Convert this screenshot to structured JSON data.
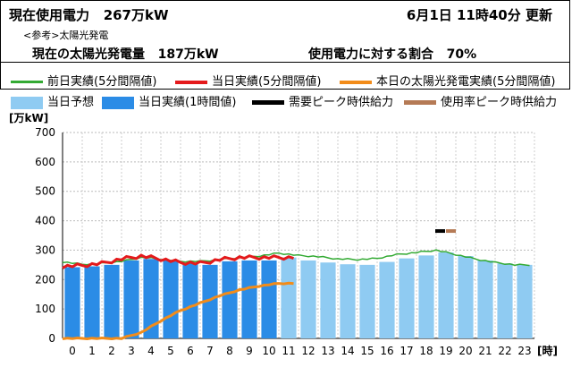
{
  "header": {
    "current_usage_label": "現在使用電力",
    "current_usage_value": "267万kW",
    "date_time": "6月1日 11時40分",
    "updated_label": "更新",
    "reference_label": "<参考>太陽光発電",
    "solar_label": "現在の太陽光発電量",
    "solar_value": "187万kW",
    "ratio_label": "使用電力に対する割合",
    "ratio_value": "70%"
  },
  "legend": {
    "prev_day": "前日実績(5分間隔値)",
    "today_actual_5min": "当日実績(5分間隔値)",
    "solar_actual": "本日の太陽光発電実績(5分間隔値)",
    "forecast": "当日予想",
    "today_actual_hourly": "当日実績(1時間値)",
    "demand_peak": "需要ピーク時供給力",
    "usage_peak": "使用率ピーク時供給力"
  },
  "colors": {
    "prev_day": "#33aa33",
    "today_actual_5min": "#e41a1c",
    "solar": "#f28c1a",
    "forecast": "#8fcbf2",
    "actual_hourly": "#2b8ce6",
    "demand_peak": "#000000",
    "usage_peak": "#b57a55"
  },
  "chart_data": {
    "type": "bar",
    "unit_label": "[万kW]",
    "x_unit_label": "[時]",
    "ylim": [
      0,
      700
    ],
    "y_ticks": [
      0,
      100,
      200,
      300,
      400,
      500,
      600,
      700
    ],
    "categories": [
      "0",
      "1",
      "2",
      "3",
      "4",
      "5",
      "6",
      "7",
      "8",
      "9",
      "10",
      "11",
      "12",
      "13",
      "14",
      "15",
      "16",
      "17",
      "18",
      "19",
      "20",
      "21",
      "22",
      "23"
    ],
    "actual_hourly": [
      242,
      245,
      250,
      265,
      270,
      265,
      255,
      250,
      262,
      265,
      265
    ],
    "forecast": [
      null,
      null,
      null,
      null,
      null,
      null,
      null,
      null,
      null,
      null,
      null,
      275,
      265,
      258,
      252,
      250,
      260,
      272,
      282,
      292,
      280,
      265,
      255,
      250
    ],
    "prev_day": [
      260,
      252,
      255,
      262,
      275,
      270,
      262,
      262,
      268,
      275,
      280,
      290,
      282,
      278,
      270,
      268,
      272,
      285,
      292,
      300,
      285,
      270,
      258,
      250
    ],
    "today_actual_5min": [
      245,
      248,
      255,
      270,
      280,
      270,
      258,
      255,
      268,
      275,
      275,
      275
    ],
    "solar": [
      0,
      0,
      0,
      0,
      20,
      60,
      95,
      120,
      145,
      165,
      178,
      187
    ],
    "demand_peak": {
      "hour": 19,
      "value": 365
    },
    "usage_peak": {
      "hour": 19,
      "value": 365
    }
  }
}
